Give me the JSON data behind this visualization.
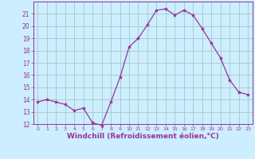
{
  "x": [
    0,
    1,
    2,
    3,
    4,
    5,
    6,
    7,
    8,
    9,
    10,
    11,
    12,
    13,
    14,
    15,
    16,
    17,
    18,
    19,
    20,
    21,
    22,
    23
  ],
  "y": [
    13.8,
    14.0,
    13.8,
    13.6,
    13.1,
    13.3,
    12.1,
    11.9,
    13.8,
    15.8,
    18.3,
    19.0,
    20.1,
    21.3,
    21.4,
    20.9,
    21.3,
    20.9,
    19.8,
    18.6,
    17.4,
    15.6,
    14.6,
    14.4
  ],
  "line_color": "#993399",
  "marker": "*",
  "marker_size": 3,
  "bg_color": "#cceeff",
  "grid_color": "#aacccc",
  "xlabel": "Windchill (Refroidissement éolien,°C)",
  "xlabel_color": "#993399",
  "tick_color": "#993399",
  "ylim": [
    12,
    22
  ],
  "xlim": [
    -0.5,
    23.5
  ],
  "yticks": [
    12,
    13,
    14,
    15,
    16,
    17,
    18,
    19,
    20,
    21
  ],
  "xticks": [
    0,
    1,
    2,
    3,
    4,
    5,
    6,
    7,
    8,
    9,
    10,
    11,
    12,
    13,
    14,
    15,
    16,
    17,
    18,
    19,
    20,
    21,
    22,
    23
  ],
  "xtick_labels": [
    "0",
    "1",
    "2",
    "3",
    "4",
    "5",
    "6",
    "7",
    "8",
    "9",
    "10",
    "11",
    "12",
    "13",
    "14",
    "15",
    "16",
    "17",
    "18",
    "19",
    "20",
    "21",
    "22",
    "23"
  ]
}
